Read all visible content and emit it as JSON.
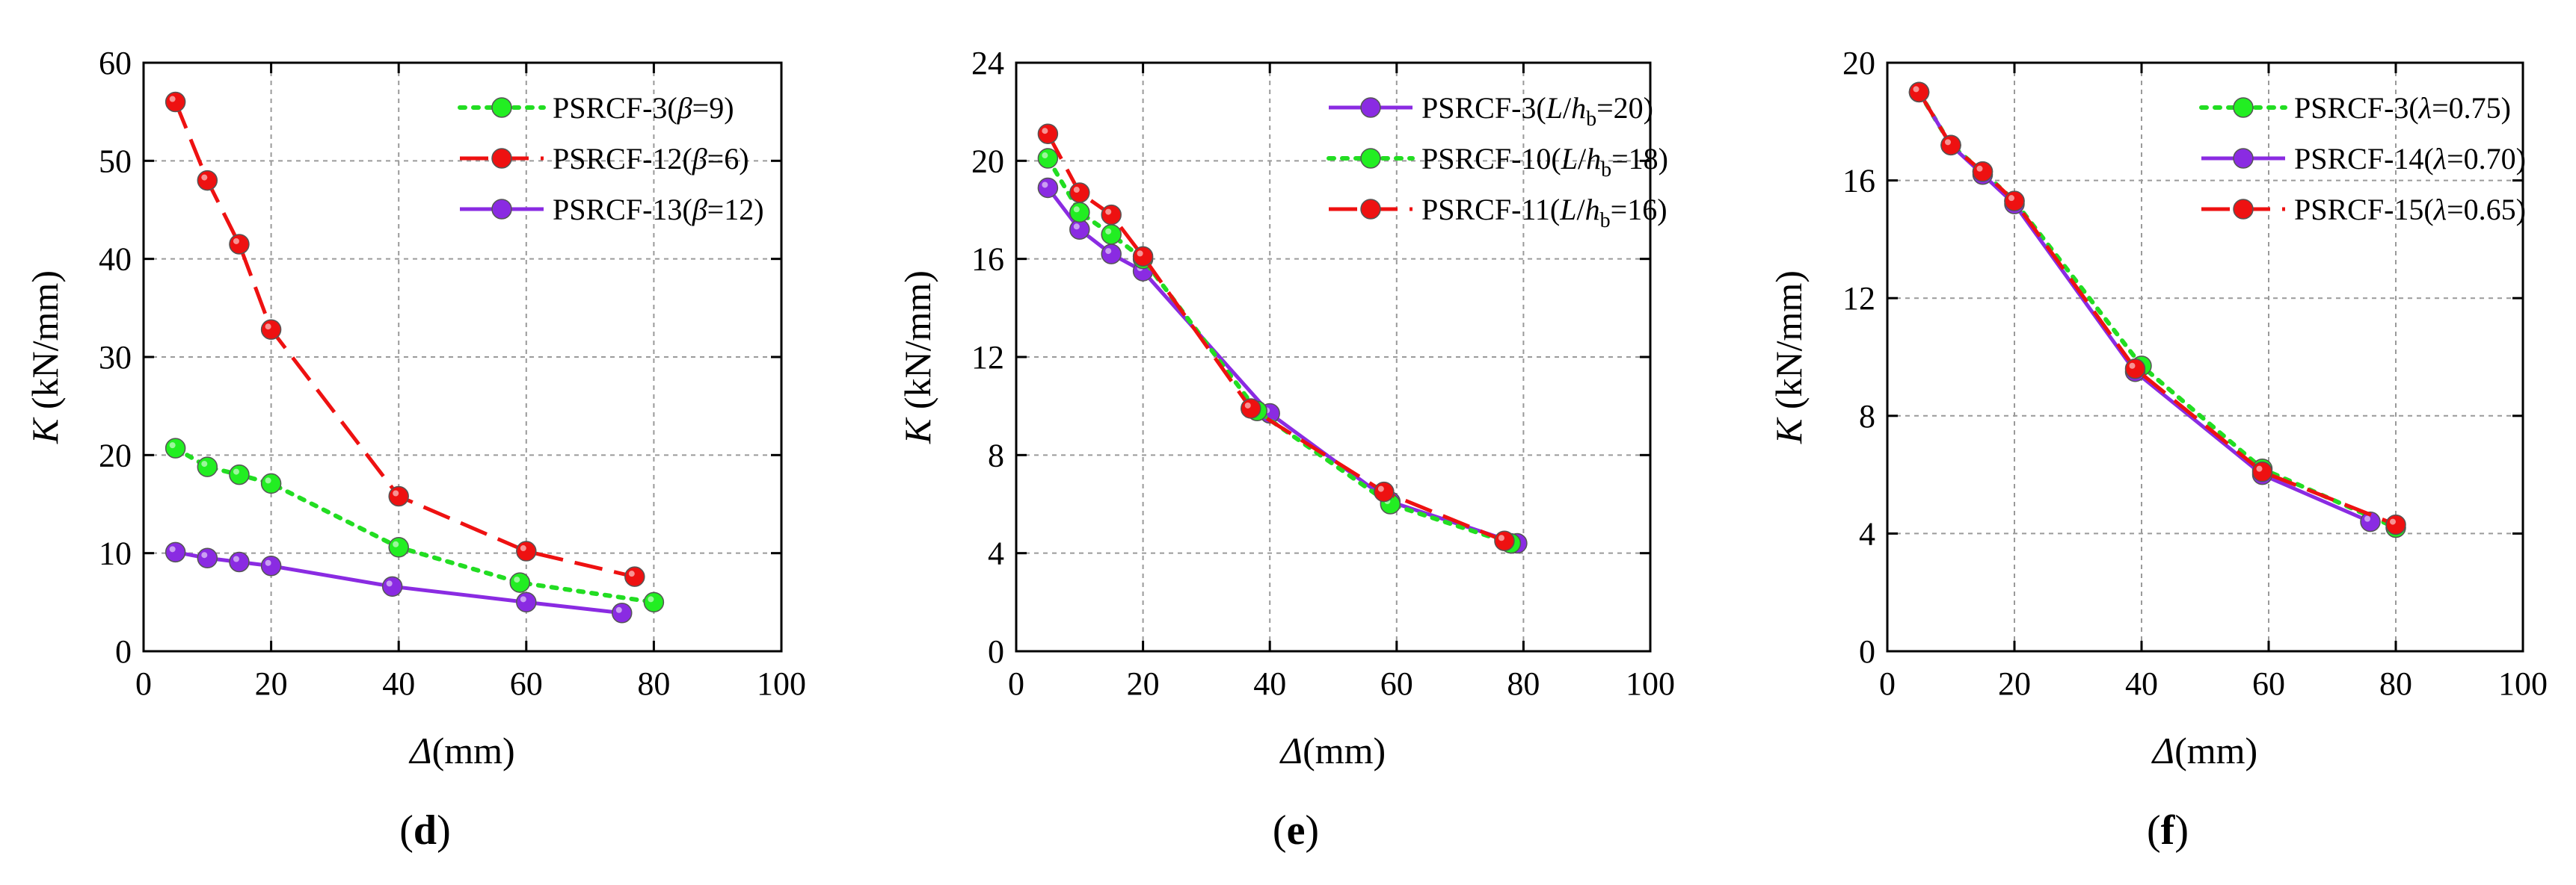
{
  "chart_data": [
    {
      "type": "line",
      "panel_label": "d",
      "xlabel": {
        "sym": "Δ",
        "unit": "(mm)"
      },
      "ylabel": {
        "sym": "K",
        "unit": " (kN/mm)"
      },
      "xlim": [
        0,
        100
      ],
      "ylim": [
        0,
        60
      ],
      "xticks": [
        0,
        20,
        40,
        60,
        80,
        100
      ],
      "yticks": [
        0,
        10,
        20,
        30,
        40,
        50,
        60
      ],
      "grid": true,
      "legend_position": "top-right",
      "series": [
        {
          "name": "PSRCF-3(β=9)",
          "legend": [
            {
              "t": "PSRCF-3("
            },
            {
              "t": "β",
              "style": "italic"
            },
            {
              "t": "=9)"
            }
          ],
          "color": "#22dd22",
          "marker": "#22ee22",
          "dash": "dotted",
          "x": [
            5,
            10,
            15,
            20,
            40,
            59,
            80
          ],
          "y": [
            20.7,
            18.8,
            18.0,
            17.1,
            10.6,
            7.0,
            5.0
          ]
        },
        {
          "name": "PSRCF-12(β=6)",
          "legend": [
            {
              "t": "PSRCF-12("
            },
            {
              "t": "β",
              "style": "italic"
            },
            {
              "t": "=6)"
            }
          ],
          "color": "#ee1111",
          "marker": "#ee1111",
          "dash": "dashed",
          "x": [
            5,
            10,
            15,
            20,
            40,
            60,
            77
          ],
          "y": [
            56.0,
            48.0,
            41.5,
            32.8,
            15.8,
            10.2,
            7.6
          ]
        },
        {
          "name": "PSRCF-13(β=12)",
          "legend": [
            {
              "t": "PSRCF-13("
            },
            {
              "t": "β",
              "style": "italic"
            },
            {
              "t": "=12)"
            }
          ],
          "color": "#8a2be2",
          "marker": "#8a2be2",
          "dash": "solid",
          "x": [
            5,
            10,
            15,
            20,
            39,
            60,
            75
          ],
          "y": [
            10.1,
            9.5,
            9.1,
            8.7,
            6.6,
            5.0,
            3.9
          ]
        }
      ]
    },
    {
      "type": "line",
      "panel_label": "e",
      "xlabel": {
        "sym": "Δ",
        "unit": "(mm)"
      },
      "ylabel": {
        "sym": "K",
        "unit": " (kN/mm)"
      },
      "xlim": [
        0,
        100
      ],
      "ylim": [
        0,
        24
      ],
      "xticks": [
        0,
        20,
        40,
        60,
        80,
        100
      ],
      "yticks": [
        0,
        4,
        8,
        12,
        16,
        20,
        24
      ],
      "grid": true,
      "legend_position": "top-right",
      "series": [
        {
          "name": "PSRCF-3(L/hb=20)",
          "legend": [
            {
              "t": "PSRCF-3("
            },
            {
              "t": "L",
              "style": "italic"
            },
            {
              "t": "/"
            },
            {
              "t": "h",
              "style": "italic"
            },
            {
              "t": "b",
              "style": "sub"
            },
            {
              "t": "=20)"
            }
          ],
          "color": "#8a2be2",
          "marker": "#8a2be2",
          "dash": "solid",
          "x": [
            5,
            10,
            15,
            20,
            40,
            59,
            79
          ],
          "y": [
            18.9,
            17.2,
            16.2,
            15.5,
            9.7,
            6.1,
            4.4
          ]
        },
        {
          "name": "PSRCF-10(L/hb=18)",
          "legend": [
            {
              "t": "PSRCF-10("
            },
            {
              "t": "L",
              "style": "italic"
            },
            {
              "t": "/"
            },
            {
              "t": "h",
              "style": "italic"
            },
            {
              "t": "b",
              "style": "sub"
            },
            {
              "t": "=18)"
            }
          ],
          "color": "#22dd22",
          "marker": "#22ee22",
          "dash": "dotted",
          "x": [
            5,
            10,
            15,
            20,
            38,
            59,
            78
          ],
          "y": [
            20.1,
            17.9,
            17.0,
            16.0,
            9.8,
            6.0,
            4.4
          ]
        },
        {
          "name": "PSRCF-11(L/hb=16)",
          "legend": [
            {
              "t": "PSRCF-11("
            },
            {
              "t": "L",
              "style": "italic"
            },
            {
              "t": "/"
            },
            {
              "t": "h",
              "style": "italic"
            },
            {
              "t": "b",
              "style": "sub"
            },
            {
              "t": "=16)"
            }
          ],
          "color": "#ee1111",
          "marker": "#ee1111",
          "dash": "dashed",
          "x": [
            5,
            10,
            15,
            20,
            37,
            58,
            77
          ],
          "y": [
            21.1,
            18.7,
            17.8,
            16.1,
            9.9,
            6.5,
            4.5
          ]
        }
      ]
    },
    {
      "type": "line",
      "panel_label": "f",
      "xlabel": {
        "sym": "Δ",
        "unit": "(mm)"
      },
      "ylabel": {
        "sym": "K",
        "unit": " (kN/mm)"
      },
      "xlim": [
        0,
        100
      ],
      "ylim": [
        0,
        20
      ],
      "xticks": [
        0,
        20,
        40,
        60,
        80,
        100
      ],
      "yticks": [
        0,
        4,
        8,
        12,
        16,
        20
      ],
      "grid": true,
      "legend_position": "top-right",
      "series": [
        {
          "name": "PSRCF-3(λ=0.75)",
          "legend": [
            {
              "t": "PSRCF-3("
            },
            {
              "t": "λ",
              "style": "italic"
            },
            {
              "t": "=0.75)"
            }
          ],
          "color": "#22dd22",
          "marker": "#22ee22",
          "dash": "dotted",
          "x": [
            5,
            10,
            15,
            20,
            40,
            59,
            80
          ],
          "y": [
            19.0,
            17.2,
            16.3,
            15.3,
            9.7,
            6.2,
            4.2
          ]
        },
        {
          "name": "PSRCF-14(λ=0.70)",
          "legend": [
            {
              "t": "PSRCF-14("
            },
            {
              "t": "λ",
              "style": "italic"
            },
            {
              "t": "=0.70)"
            }
          ],
          "color": "#8a2be2",
          "marker": "#8a2be2",
          "dash": "solid",
          "x": [
            5,
            10,
            15,
            20,
            39,
            59,
            76
          ],
          "y": [
            19.0,
            17.2,
            16.2,
            15.2,
            9.5,
            6.0,
            4.4
          ]
        },
        {
          "name": "PSRCF-15(λ=0.65)",
          "legend": [
            {
              "t": "PSRCF-15("
            },
            {
              "t": "λ",
              "style": "italic"
            },
            {
              "t": "=0.65)"
            }
          ],
          "color": "#ee1111",
          "marker": "#ee1111",
          "dash": "dashed",
          "x": [
            5,
            10,
            15,
            20,
            39,
            59,
            80
          ],
          "y": [
            19.0,
            17.2,
            16.3,
            15.3,
            9.6,
            6.1,
            4.3
          ]
        }
      ]
    }
  ]
}
